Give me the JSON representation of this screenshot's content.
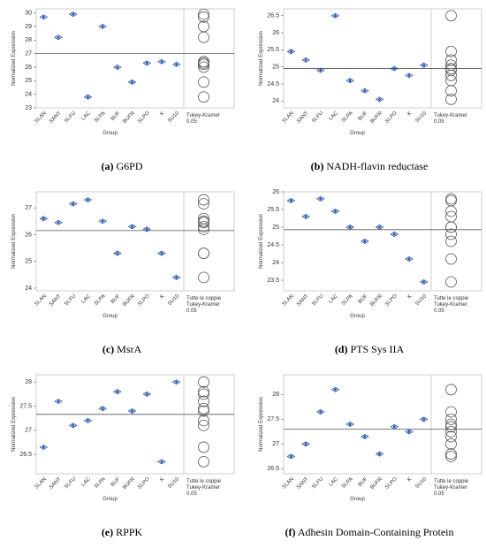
{
  "chart_data": [
    {
      "type": "dot",
      "label": "(a)",
      "title": "G6PD",
      "ylabel": "Normalized Expression",
      "xlabel": "Group",
      "categories": [
        "SLAN",
        "SANT",
        "SLFU",
        "LAC",
        "SLPA",
        "BUF",
        "BUFR",
        "SLPO",
        "K",
        "SU10"
      ],
      "values": [
        29.7,
        28.2,
        29.9,
        23.8,
        29.0,
        26.0,
        24.9,
        26.3,
        26.4,
        26.2
      ],
      "reference_line": 27.0,
      "ylim": [
        23,
        30.3
      ],
      "yticks": [
        23,
        24,
        25,
        26,
        27,
        28,
        29,
        30
      ],
      "circle_labels": [
        "Tukey-Kramer",
        "0.05"
      ],
      "color": "#1f4fa8"
    },
    {
      "type": "dot",
      "label": "(b)",
      "title": "NADH-flavin reductase",
      "ylabel": "Normalized Expression",
      "xlabel": "Group",
      "categories": [
        "SLAN",
        "SANT",
        "SLFU",
        "LAC",
        "SLPA",
        "BUF",
        "BUFR",
        "SLPO",
        "K",
        "SU10"
      ],
      "values": [
        25.45,
        25.2,
        24.9,
        26.5,
        24.6,
        24.3,
        24.05,
        24.95,
        24.75,
        25.05
      ],
      "reference_line": 24.95,
      "ylim": [
        23.8,
        26.7
      ],
      "yticks": [
        24,
        24.5,
        25,
        25.5,
        26,
        26.5
      ],
      "circle_labels": [
        "Tukey-Kramer",
        "0.05"
      ],
      "color": "#1f4fa8"
    },
    {
      "type": "dot",
      "label": "(c)",
      "title": "MsrA",
      "ylabel": "Normalized Expression",
      "xlabel": "Group",
      "categories": [
        "SLAN",
        "SANT",
        "SLFU",
        "LAC",
        "SLPA",
        "BUF",
        "BUFR",
        "SLPO",
        "K",
        "SU10"
      ],
      "values": [
        26.6,
        26.45,
        27.15,
        27.3,
        26.5,
        25.3,
        26.3,
        26.2,
        25.3,
        24.4
      ],
      "reference_line": 26.15,
      "ylim": [
        23.9,
        27.6
      ],
      "yticks": [
        24,
        25,
        26,
        27
      ],
      "circle_labels": [
        "Tutte le coppie",
        "Tukey-Kramer",
        "0.05"
      ],
      "color": "#1f4fa8"
    },
    {
      "type": "dot",
      "label": "(d)",
      "title": "PTS Sys IIA",
      "ylabel": "Normalized Expression",
      "xlabel": "Group",
      "categories": [
        "SLAN",
        "SANT",
        "SLFU",
        "LAC",
        "SLPA",
        "BUF",
        "BUFR",
        "SLPO",
        "K",
        "SU10"
      ],
      "values": [
        25.75,
        25.3,
        25.8,
        25.45,
        25.0,
        24.6,
        25.0,
        24.8,
        24.1,
        23.45
      ],
      "reference_line": 24.93,
      "ylim": [
        23.2,
        26.0
      ],
      "yticks": [
        23.5,
        24,
        24.5,
        25,
        25.5,
        26
      ],
      "circle_labels": [
        "Tutte le coppie",
        "Tukey-Kramer",
        "0.05"
      ],
      "color": "#1f4fa8"
    },
    {
      "type": "dot",
      "label": "(e)",
      "title": "RPPK",
      "ylabel": "Normalized Expression",
      "xlabel": "Group",
      "categories": [
        "SLAN",
        "SANT",
        "SLFU",
        "LAC",
        "SLPA",
        "BUF",
        "BUFR",
        "SLPO",
        "K",
        "SU10"
      ],
      "values": [
        26.65,
        27.6,
        27.1,
        27.2,
        27.45,
        27.8,
        27.4,
        27.75,
        26.35,
        28.0
      ],
      "reference_line": 27.33,
      "ylim": [
        26.1,
        28.15
      ],
      "yticks": [
        26.5,
        27,
        27.5,
        28
      ],
      "circle_labels": [
        "Tutte le coppie",
        "Tukey-Kramer",
        "0.05"
      ],
      "color": "#1f4fa8"
    },
    {
      "type": "dot",
      "label": "(f)",
      "title": "Adhesin Domain-Containing Protein",
      "ylabel": "Normalized Expression",
      "xlabel": "Group",
      "categories": [
        "SLAN",
        "SANT",
        "SLFU",
        "LAC",
        "SLPA",
        "BUF",
        "BUFR",
        "SLPO",
        "K",
        "SU10"
      ],
      "values": [
        26.75,
        27.0,
        27.65,
        28.1,
        27.4,
        27.15,
        26.8,
        27.35,
        27.25,
        27.5
      ],
      "reference_line": 27.3,
      "ylim": [
        26.4,
        28.4
      ],
      "yticks": [
        26.5,
        27,
        27.5,
        28
      ],
      "circle_labels": [
        "Tutte le coppie",
        "Tukey-Kramer",
        "0.05"
      ],
      "color": "#1f4fa8"
    }
  ]
}
